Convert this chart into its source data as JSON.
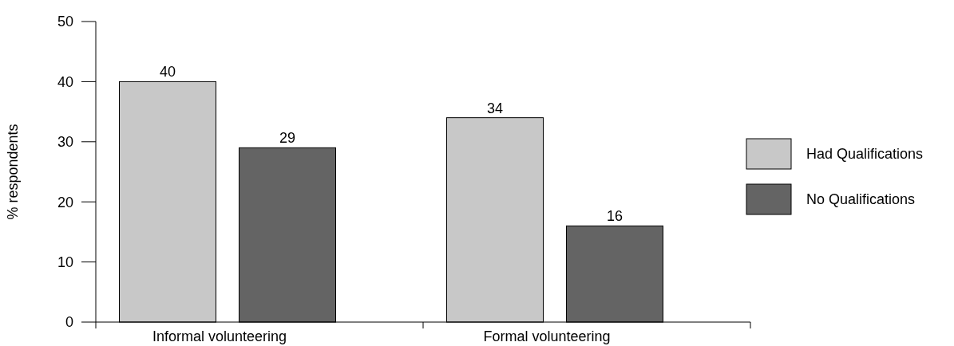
{
  "chart_data": {
    "type": "bar",
    "ylabel": "% respondents",
    "categories": [
      "Informal volunteering",
      "Formal volunteering"
    ],
    "series": [
      {
        "name": "Had Qualifications",
        "color": "#c8c8c8",
        "values": [
          40,
          34
        ]
      },
      {
        "name": "No Qualifications",
        "color": "#646464",
        "values": [
          29,
          16
        ]
      }
    ],
    "ylim": [
      0,
      50
    ],
    "yticks": [
      0,
      10,
      20,
      30,
      40,
      50
    ],
    "data_labels": true,
    "legend": "right",
    "grid": false
  }
}
